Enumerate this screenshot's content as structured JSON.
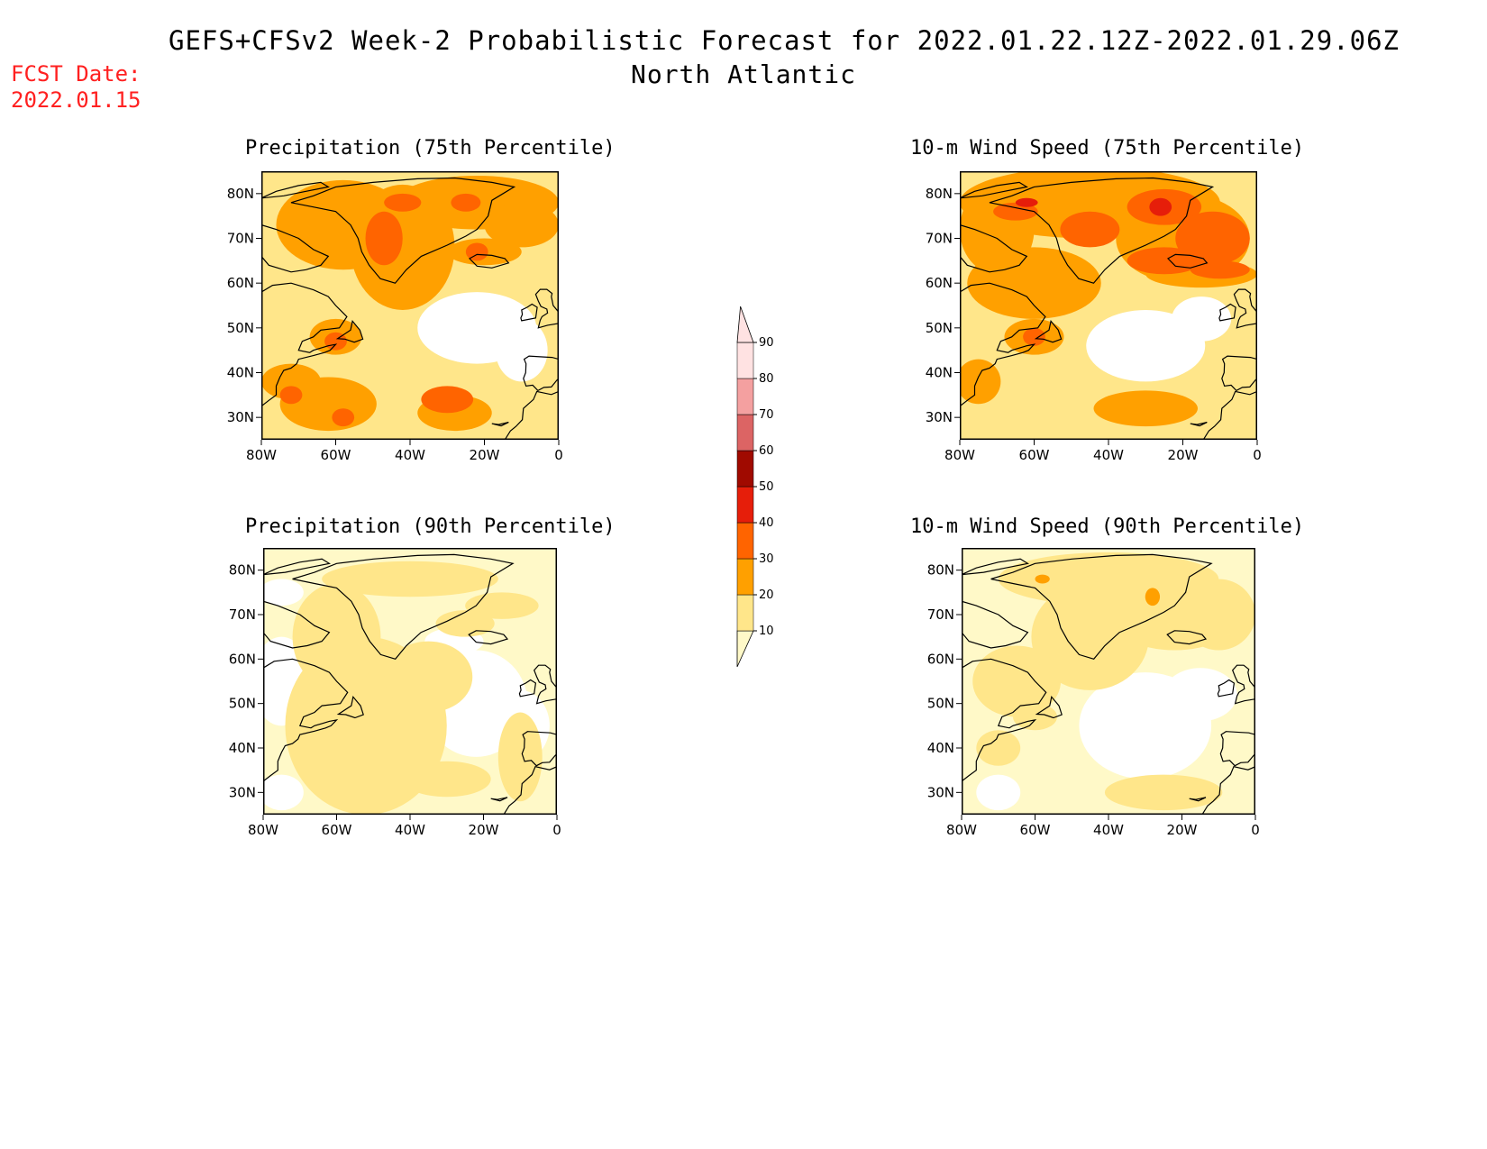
{
  "title": {
    "line1": "GEFS+CFSv2 Week-2 Probabilistic Forecast for 2022.01.22.12Z-2022.01.29.06Z",
    "line2": "North Atlantic"
  },
  "fcst_date": {
    "label": "FCST Date:",
    "value": "2022.01.15"
  },
  "panels": [
    {
      "title": "Precipitation (75th Percentile)",
      "variable": "precipitation",
      "percentile": 75
    },
    {
      "title": "10-m Wind Speed (75th Percentile)",
      "variable": "wind-speed",
      "percentile": 75
    },
    {
      "title": "Precipitation (90th Percentile)",
      "variable": "precipitation",
      "percentile": 90
    },
    {
      "title": "10-m Wind Speed (90th Percentile)",
      "variable": "wind-speed",
      "percentile": 90
    }
  ],
  "axes": {
    "lon_ticks": [
      "80W",
      "60W",
      "40W",
      "20W",
      "0"
    ],
    "lat_ticks": [
      "80N",
      "70N",
      "60N",
      "50N",
      "40N",
      "30N"
    ],
    "lon_range": [
      -80,
      0
    ],
    "lat_range": [
      25,
      85
    ]
  },
  "colorbar": {
    "levels": [
      10,
      20,
      30,
      40,
      50,
      60,
      70,
      80,
      90
    ],
    "labels": [
      "10",
      "20",
      "30",
      "40",
      "50",
      "60",
      "70",
      "80",
      "90"
    ],
    "colors": [
      "#fff9c8",
      "#ffe68a",
      "#ffa000",
      "#ff6400",
      "#e61e0a",
      "#a00a00",
      "#dc6464",
      "#f4a0a0",
      "#ffe2e2"
    ]
  },
  "colors": {
    "fcst_date": "#ff2020",
    "land_outline": "#000000"
  }
}
